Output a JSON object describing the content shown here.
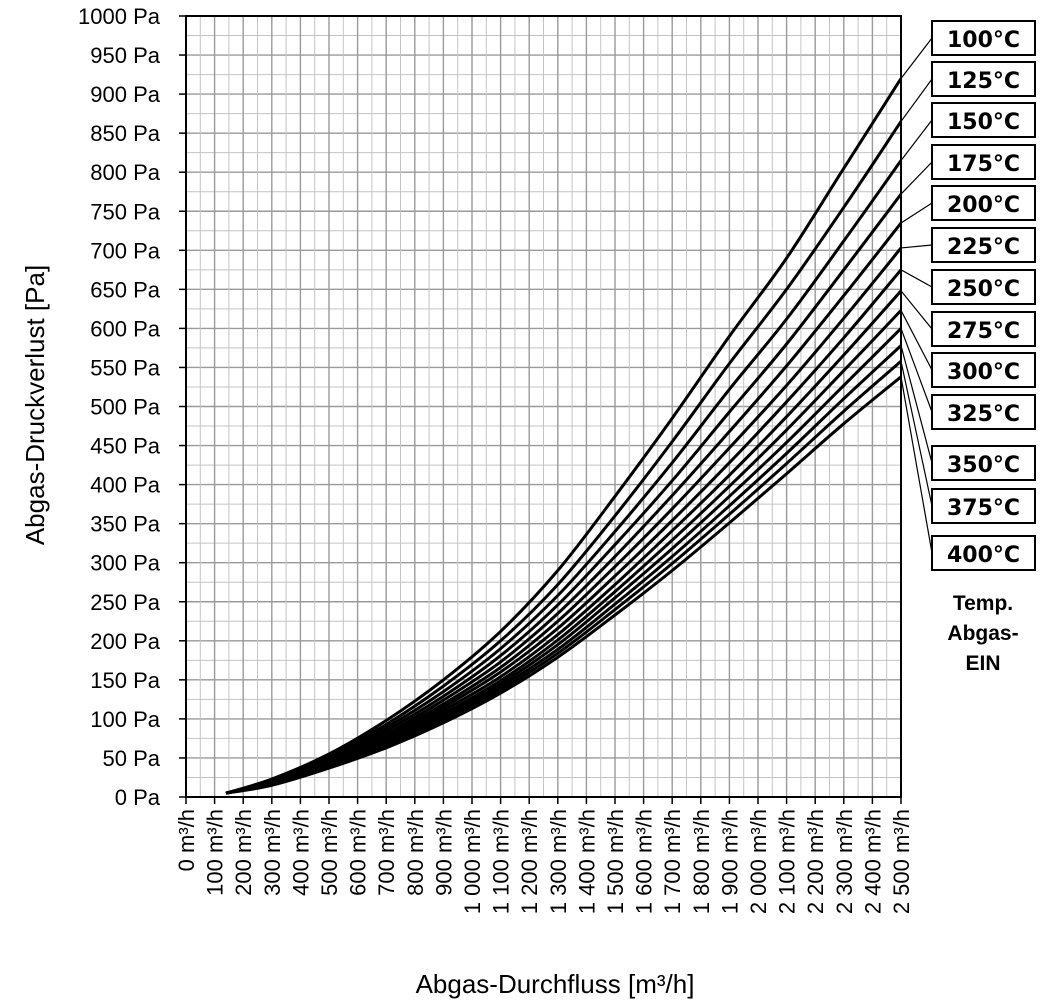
{
  "chart_data": {
    "type": "line",
    "ylabel": "Abgas-Druckverlust [Pa]",
    "xlabel": "Abgas-Durchfluss [m³/h]",
    "xlim": [
      0,
      2500
    ],
    "ylim": [
      0,
      1000
    ],
    "grid": true,
    "y_ticks": [
      "0 Pa",
      "50 Pa",
      "100 Pa",
      "150 Pa",
      "200 Pa",
      "250 Pa",
      "300 Pa",
      "350 Pa",
      "400 Pa",
      "450 Pa",
      "500 Pa",
      "550 Pa",
      "600 Pa",
      "650 Pa",
      "700 Pa",
      "750 Pa",
      "800 Pa",
      "850 Pa",
      "900 Pa",
      "950 Pa",
      "1000 Pa"
    ],
    "x_ticks": [
      "0 m³/h",
      "100 m³/h",
      "200 m³/h",
      "300 m³/h",
      "400 m³/h",
      "500 m³/h",
      "600 m³/h",
      "700 m³/h",
      "800 m³/h",
      "900 m³/h",
      "1 000 m³/h",
      "1 100 m³/h",
      "1 200 m³/h",
      "1 300 m³/h",
      "1 400 m³/h",
      "1 500 m³/h",
      "1 600 m³/h",
      "1 700 m³/h",
      "1 800 m³/h",
      "1 900 m³/h",
      "2 000 m³/h",
      "2 100 m³/h",
      "2 200 m³/h",
      "2 300 m³/h",
      "2 400 m³/h",
      "2 500 m³/h"
    ],
    "legend_title": "Temp. Abgas-EIN",
    "legend_title_lines": [
      "Temp.",
      "Abgas-",
      "EIN"
    ],
    "legend_position": "right",
    "x": [
      140,
      300,
      500,
      700,
      900,
      1100,
      1300,
      1500,
      1700,
      1900,
      2100,
      2300,
      2500
    ],
    "series": [
      {
        "name": "100°C",
        "values": [
          5,
          23,
          55,
          98,
          150,
          212,
          290,
          385,
          485,
          590,
          690,
          805,
          920
        ]
      },
      {
        "name": "125°C",
        "values": [
          5,
          22,
          53,
          93,
          142,
          200,
          272,
          360,
          455,
          555,
          650,
          755,
          865
        ]
      },
      {
        "name": "150°C",
        "values": [
          5,
          21,
          51,
          89,
          135,
          190,
          258,
          340,
          428,
          522,
          612,
          712,
          815
        ]
      },
      {
        "name": "175°C",
        "values": [
          5,
          20,
          49,
          85,
          129,
          181,
          246,
          323,
          405,
          493,
          580,
          675,
          772
        ]
      },
      {
        "name": "200°C",
        "values": [
          5,
          19,
          47,
          81,
          124,
          173,
          235,
          308,
          386,
          468,
          552,
          642,
          735
        ]
      },
      {
        "name": "225°C",
        "values": [
          5,
          19,
          45,
          78,
          119,
          166,
          225,
          295,
          369,
          447,
          527,
          613,
          703
        ]
      },
      {
        "name": "250°C",
        "values": [
          5,
          18,
          43,
          75,
          115,
          160,
          216,
          283,
          354,
          428,
          506,
          588,
          675
        ]
      },
      {
        "name": "275°C",
        "values": [
          5,
          18,
          42,
          73,
          111,
          154,
          208,
          272,
          341,
          412,
          487,
          566,
          648
        ]
      },
      {
        "name": "300°C",
        "values": [
          5,
          17,
          41,
          71,
          107,
          149,
          201,
          263,
          329,
          398,
          470,
          546,
          623
        ]
      },
      {
        "name": "325°C",
        "values": [
          5,
          17,
          40,
          69,
          104,
          145,
          195,
          255,
          318,
          385,
          454,
          527,
          600
        ]
      },
      {
        "name": "350°C",
        "values": [
          5,
          16,
          39,
          67,
          101,
          141,
          189,
          247,
          308,
          373,
          440,
          510,
          578
        ]
      },
      {
        "name": "375°C",
        "values": [
          5,
          16,
          38,
          65,
          98,
          137,
          184,
          240,
          299,
          362,
          427,
          494,
          558
        ]
      },
      {
        "name": "400°C",
        "values": [
          5,
          15,
          37,
          63,
          95,
          133,
          179,
          233,
          290,
          351,
          414,
          478,
          538
        ]
      }
    ]
  }
}
